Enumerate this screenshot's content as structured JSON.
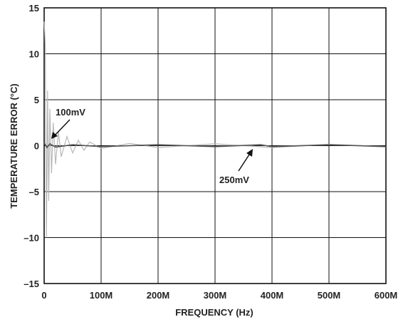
{
  "chart_data": {
    "type": "line",
    "title": "",
    "xlabel": "FREQUENCY (Hz)",
    "ylabel": "TEMPERATURE ERROR (°C)",
    "xlim": [
      0,
      600000000
    ],
    "ylim": [
      -15,
      15
    ],
    "x_ticks": [
      0,
      100000000,
      200000000,
      300000000,
      400000000,
      500000000,
      600000000
    ],
    "x_tick_labels": [
      "0",
      "100M",
      "200M",
      "300M",
      "400M",
      "500M",
      "600M"
    ],
    "y_ticks": [
      15,
      10,
      5,
      0,
      -5,
      -10,
      -15
    ],
    "y_tick_labels": [
      "15",
      "10",
      "5",
      "0",
      "–5",
      "–10",
      "–15"
    ],
    "grid": true,
    "colors": {
      "series_100mV": "#b8b8b8",
      "series_250mV": "#555555",
      "axis": "#111111"
    },
    "series": [
      {
        "name": "100mV",
        "x": [
          0,
          2000000,
          4000000,
          6000000,
          8000000,
          10000000,
          13000000,
          16000000,
          20000000,
          25000000,
          30000000,
          40000000,
          50000000,
          60000000,
          70000000,
          80000000,
          100000000,
          150000000,
          200000000,
          300000000,
          400000000,
          500000000,
          600000000
        ],
        "y": [
          13.5,
          11,
          -10,
          6,
          -6,
          4,
          -3,
          2.5,
          -2,
          1.5,
          -1.2,
          1,
          -0.8,
          0.6,
          -0.5,
          0.4,
          -0.3,
          0.25,
          -0.2,
          0.2,
          -0.2,
          0.15,
          -0.1
        ]
      },
      {
        "name": "250mV",
        "x": [
          0,
          5000000,
          10000000,
          20000000,
          50000000,
          100000000,
          200000000,
          300000000,
          380000000,
          400000000,
          500000000,
          600000000
        ],
        "y": [
          0.3,
          -0.2,
          0.2,
          -0.15,
          0.1,
          -0.1,
          0.1,
          -0.1,
          0.1,
          -0.1,
          0.1,
          -0.1
        ]
      }
    ],
    "annotations": [
      {
        "text": "100mV",
        "x": 8000000,
        "y": 1
      },
      {
        "text": "250mV",
        "x": 375000000,
        "y": 0
      }
    ]
  }
}
